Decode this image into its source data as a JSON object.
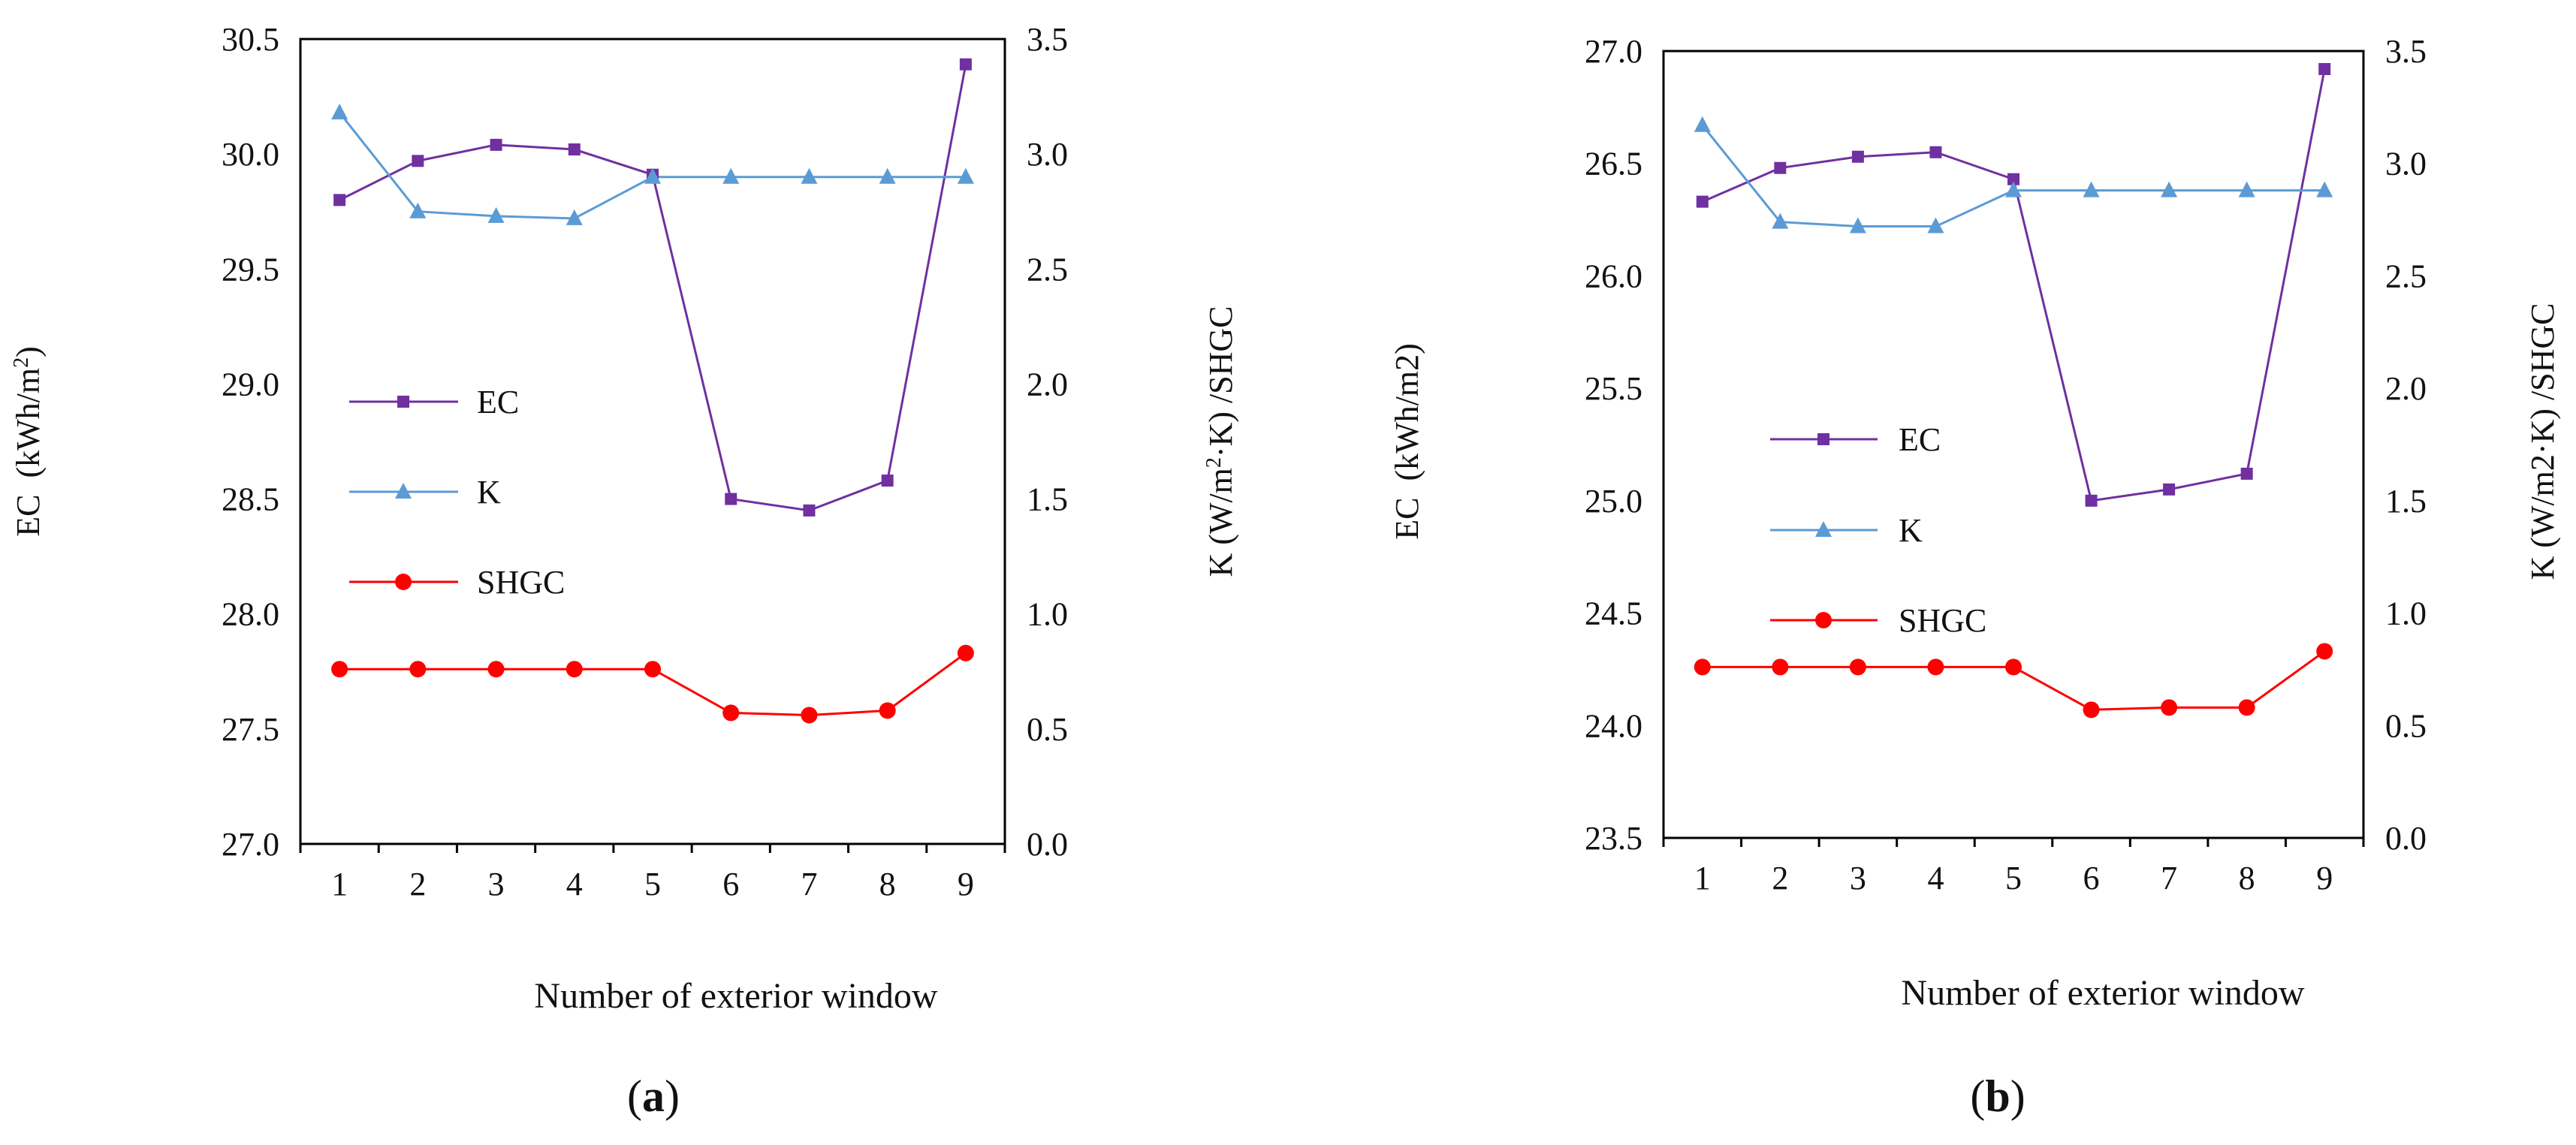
{
  "chart_data": [
    {
      "type": "line",
      "panel_label": "(a)",
      "categories": [
        "1",
        "2",
        "3",
        "4",
        "5",
        "6",
        "7",
        "8",
        "9"
      ],
      "xlabel": "Number of exterior window",
      "left_axis": {
        "label_main": "EC  (kWh/m",
        "label_sup": "2",
        "label_end": ")",
        "ylim": [
          27.0,
          30.5
        ],
        "ticks": [
          "27.0",
          "27.5",
          "28.0",
          "28.5",
          "29.0",
          "29.5",
          "30.0",
          "30.5"
        ]
      },
      "right_axis": {
        "label_main": "K (W/m",
        "label_sup": "2",
        "label_end": "·K) /SHGC",
        "ylim": [
          0.0,
          3.5
        ],
        "ticks": [
          "0.0",
          "0.5",
          "1.0",
          "1.5",
          "2.0",
          "2.5",
          "3.0",
          "3.5"
        ]
      },
      "series": [
        {
          "name": "EC",
          "axis": "left",
          "marker": "square",
          "color": "#7030A0",
          "values": [
            29.8,
            29.97,
            30.04,
            30.02,
            29.91,
            28.5,
            28.45,
            28.58,
            30.39
          ]
        },
        {
          "name": "K",
          "axis": "right",
          "marker": "triangle",
          "color": "#5B9BD5",
          "values": [
            3.18,
            2.75,
            2.73,
            2.72,
            2.9,
            2.9,
            2.9,
            2.9,
            2.9
          ]
        },
        {
          "name": "SHGC",
          "axis": "right",
          "marker": "circle",
          "color": "#FF0000",
          "values": [
            0.76,
            0.76,
            0.76,
            0.76,
            0.76,
            0.57,
            0.56,
            0.58,
            0.83
          ]
        }
      ]
    },
    {
      "type": "line",
      "panel_label": "(b)",
      "categories": [
        "1",
        "2",
        "3",
        "4",
        "5",
        "6",
        "7",
        "8",
        "9"
      ],
      "xlabel": "Number of exterior window",
      "left_axis": {
        "label_main": "EC  (kWh/m2)",
        "label_sup": "",
        "label_end": "",
        "ylim": [
          23.5,
          27.0
        ],
        "ticks": [
          "23.5",
          "24.0",
          "24.5",
          "25.0",
          "25.5",
          "26.0",
          "26.5",
          "27.0"
        ]
      },
      "right_axis": {
        "label_main": "K (W/m2·K) /SHGC",
        "label_sup": "",
        "label_end": "",
        "ylim": [
          0.0,
          3.5
        ],
        "ticks": [
          "0.0",
          "0.5",
          "1.0",
          "1.5",
          "2.0",
          "2.5",
          "3.0",
          "3.5"
        ]
      },
      "series": [
        {
          "name": "EC",
          "axis": "left",
          "marker": "square",
          "color": "#7030A0",
          "values": [
            26.33,
            26.48,
            26.53,
            26.55,
            26.43,
            25.0,
            25.05,
            25.12,
            26.92
          ]
        },
        {
          "name": "K",
          "axis": "right",
          "marker": "triangle",
          "color": "#5B9BD5",
          "values": [
            3.17,
            2.74,
            2.72,
            2.72,
            2.88,
            2.88,
            2.88,
            2.88,
            2.88
          ]
        },
        {
          "name": "SHGC",
          "axis": "right",
          "marker": "circle",
          "color": "#FF0000",
          "values": [
            0.76,
            0.76,
            0.76,
            0.76,
            0.76,
            0.57,
            0.58,
            0.58,
            0.83
          ]
        }
      ]
    }
  ]
}
